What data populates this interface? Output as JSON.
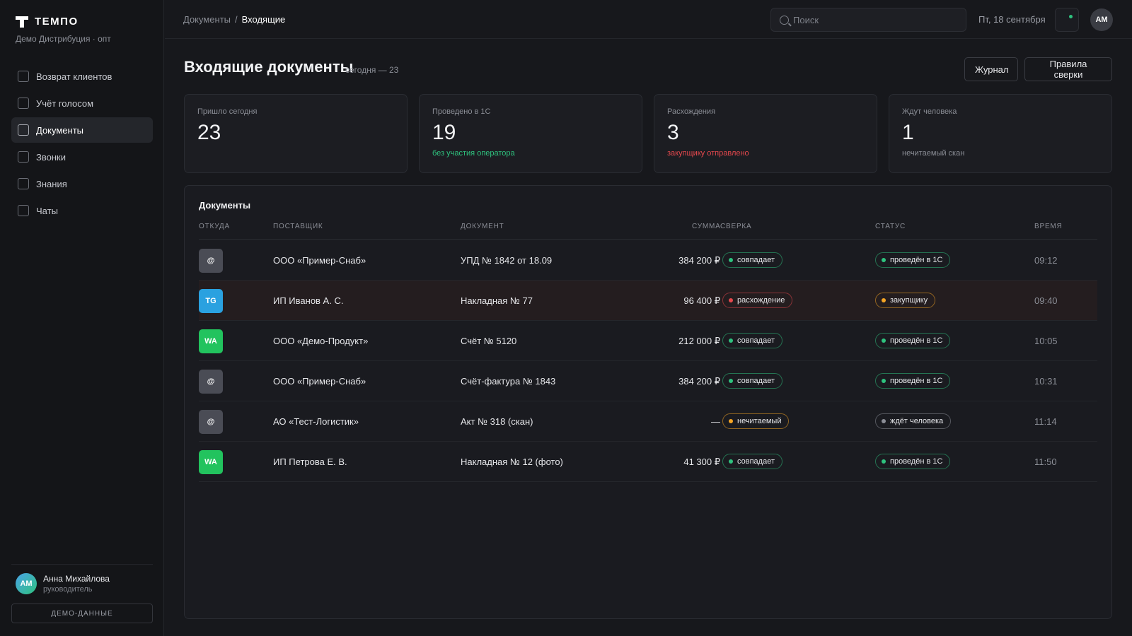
{
  "sidebar": {
    "brand": "ТЕМПО",
    "org": "Демо Дистрибуция · опт",
    "nav": [
      {
        "label": "Возврат клиентов",
        "active": false
      },
      {
        "label": "Учёт голосом",
        "active": false
      },
      {
        "label": "Документы",
        "active": true
      },
      {
        "label": "Звонки",
        "active": false
      },
      {
        "label": "Знания",
        "active": false
      },
      {
        "label": "Чаты",
        "active": false
      }
    ],
    "user": {
      "initials": "АМ",
      "name": "Анна Михайлова",
      "role": "руководитель"
    },
    "demo_button": "ДЕМО-ДАННЫЕ"
  },
  "topbar": {
    "breadcrumb": [
      "Документы",
      "Входящие"
    ],
    "search_placeholder": "Поиск",
    "date": "Пт, 18 сентября",
    "avatar_initials": "АМ",
    "notification_dot_color": "#2ec27e"
  },
  "header": {
    "title": "Входящие документы",
    "subtitle": "сегодня — 23",
    "buttons": {
      "journal": "Журнал",
      "rules": "Правила сверки"
    }
  },
  "cards": [
    {
      "label": "Пришло сегодня",
      "value": "23",
      "note": "",
      "note_color": ""
    },
    {
      "label": "Проведено в 1С",
      "value": "19",
      "note": "без участия оператора",
      "note_color": "#2ec27e"
    },
    {
      "label": "Расхождения",
      "value": "3",
      "note": "закупщику отправлено",
      "note_color": "#e5484d"
    },
    {
      "label": "Ждут человека",
      "value": "1",
      "note": "нечитаемый скан",
      "note_color": "#8b8e96"
    }
  ],
  "table": {
    "title": "Документы",
    "columns": {
      "source": "ОТКУДА",
      "supplier": "ПОСТАВЩИК",
      "document": "ДОКУМЕНТ",
      "sum": "СУММА",
      "check": "СВЕРКА",
      "status": "СТАТУС",
      "time": "ВРЕМЯ"
    },
    "rows": [
      {
        "source": "@",
        "source_color": "#4a4c55",
        "supplier": "ООО «Пример-Снаб»",
        "document": "УПД № 1842 от 18.09",
        "sum": "384 200 ₽",
        "check": "совпадает",
        "check_color": "#2ec27e",
        "status": "проведён в 1С",
        "status_color": "#2ec27e",
        "time": "09:12",
        "highlight": false
      },
      {
        "source": "TG",
        "source_color": "#2aa1e0",
        "supplier": "ИП Иванов А. С.",
        "document": "Накладная № 77",
        "sum": "96 400 ₽",
        "check": "расхождение",
        "check_color": "#e5484d",
        "status": "закупщику",
        "status_color": "#f5a524",
        "time": "09:40",
        "highlight": true
      },
      {
        "source": "WA",
        "source_color": "#22c35e",
        "supplier": "ООО «Демо-Продукт»",
        "document": "Счёт № 5120",
        "sum": "212 000 ₽",
        "check": "совпадает",
        "check_color": "#2ec27e",
        "status": "проведён в 1С",
        "status_color": "#2ec27e",
        "time": "10:05",
        "highlight": false
      },
      {
        "source": "@",
        "source_color": "#4a4c55",
        "supplier": "ООО «Пример-Снаб»",
        "document": "Счёт-фактура № 1843",
        "sum": "384 200 ₽",
        "check": "совпадает",
        "check_color": "#2ec27e",
        "status": "проведён в 1С",
        "status_color": "#2ec27e",
        "time": "10:31",
        "highlight": false
      },
      {
        "source": "@",
        "source_color": "#4a4c55",
        "supplier": "АО «Тест-Логистик»",
        "document": "Акт № 318 (скан)",
        "sum": "—",
        "check": "нечитаемый",
        "check_color": "#f5a524",
        "status": "ждёт человека",
        "status_color": "#8b8e96",
        "time": "11:14",
        "highlight": false
      },
      {
        "source": "WA",
        "source_color": "#22c35e",
        "supplier": "ИП Петрова Е. В.",
        "document": "Накладная № 12 (фото)",
        "sum": "41 300 ₽",
        "check": "совпадает",
        "check_color": "#2ec27e",
        "status": "проведён в 1С",
        "status_color": "#2ec27e",
        "time": "11:50",
        "highlight": false
      }
    ]
  }
}
